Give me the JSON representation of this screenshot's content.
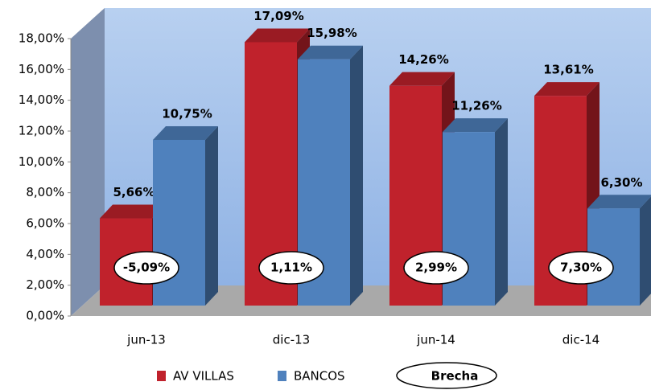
{
  "chart_data": {
    "type": "bar3d",
    "categories": [
      "jun-13",
      "dic-13",
      "jun-14",
      "dic-14"
    ],
    "series": [
      {
        "name": "AV VILLAS",
        "color": "#c0222c",
        "values": [
          5.66,
          17.09,
          14.26,
          13.61
        ],
        "value_labels": [
          "5,66%",
          "17,09%",
          "14,26%",
          "13,61%"
        ]
      },
      {
        "name": "BANCOS",
        "color": "#4f81bd",
        "values": [
          10.75,
          15.98,
          11.26,
          6.3
        ],
        "value_labels": [
          "10,75%",
          "15,98%",
          "11,26%",
          "6,30%"
        ]
      }
    ],
    "brecha": {
      "name": "Brecha",
      "values": [
        -5.09,
        1.11,
        2.99,
        7.3
      ],
      "value_labels": [
        "-5,09%",
        "1,11%",
        "2,99%",
        "7,30%"
      ]
    },
    "ylim": [
      0,
      18
    ],
    "yticks": [
      {
        "value": 0,
        "label": "0,00%"
      },
      {
        "value": 2,
        "label": "2,00%"
      },
      {
        "value": 4,
        "label": "4,00%"
      },
      {
        "value": 6,
        "label": "6,00%"
      },
      {
        "value": 8,
        "label": "8,00%"
      },
      {
        "value": 10,
        "label": "10,00%"
      },
      {
        "value": 12,
        "label": "12,00%"
      },
      {
        "value": 14,
        "label": "14,00%"
      },
      {
        "value": 16,
        "label": "16,00%"
      },
      {
        "value": 18,
        "label": "18,00%"
      }
    ]
  }
}
